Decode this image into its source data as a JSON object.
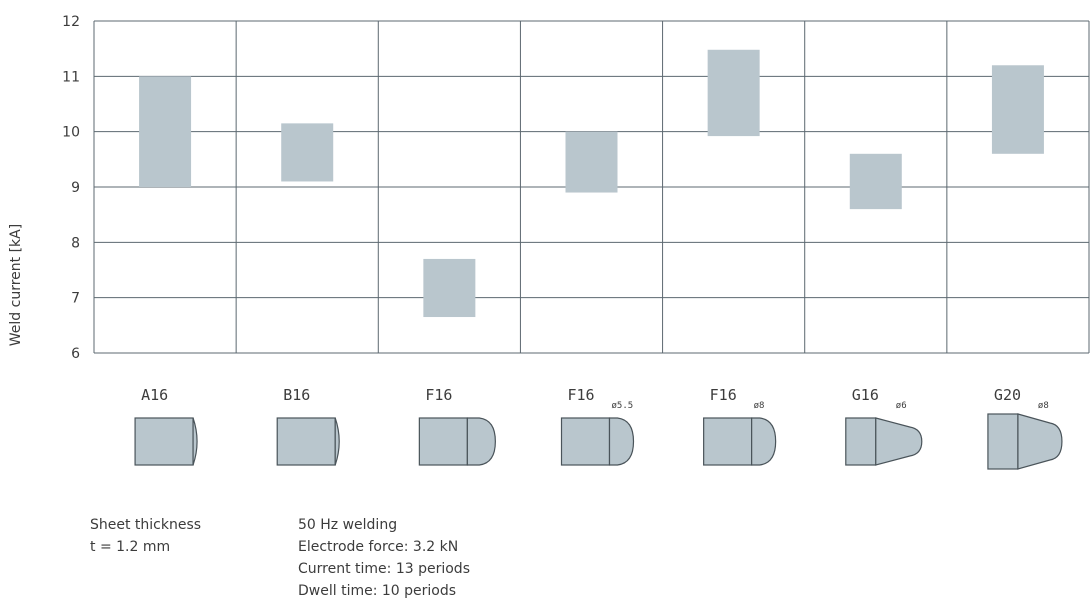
{
  "chart_data": {
    "type": "bar",
    "subtype": "floating-range",
    "ylabel": "Weld current [kA]",
    "ylim": [
      6,
      12
    ],
    "yticks": [
      6,
      7,
      8,
      9,
      10,
      11,
      12
    ],
    "grid": true,
    "bar_color": "#b9c6cd",
    "grid_color": "#5c6870",
    "categories": [
      {
        "name": "A16",
        "sub": "",
        "tip": "pointed"
      },
      {
        "name": "B16",
        "sub": "",
        "tip": "pointed"
      },
      {
        "name": "F16",
        "sub": "",
        "tip": "dome"
      },
      {
        "name": "F16",
        "sub": "ø5.5",
        "tip": "dome"
      },
      {
        "name": "F16",
        "sub": "ø8",
        "tip": "dome"
      },
      {
        "name": "G16",
        "sub": "ø6",
        "tip": "taper"
      },
      {
        "name": "G20",
        "sub": "ø8",
        "tip": "taper"
      }
    ],
    "ranges": [
      [
        9.0,
        11.0
      ],
      [
        9.1,
        10.15
      ],
      [
        6.65,
        7.7
      ],
      [
        8.9,
        10.0
      ],
      [
        9.92,
        11.48
      ],
      [
        8.6,
        9.6
      ],
      [
        9.6,
        11.2
      ]
    ]
  },
  "notes": {
    "sheet": [
      "Sheet thickness",
      "t = 1.2 mm"
    ],
    "welding": [
      "50 Hz welding",
      "Electrode force: 3.2 kN",
      "Current time: 13 periods",
      "Dwell time: 10 periods"
    ]
  }
}
